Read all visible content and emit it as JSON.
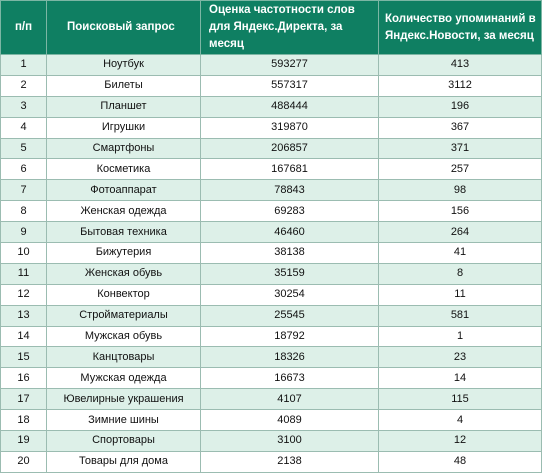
{
  "table": {
    "headers": {
      "num": "п/п",
      "query": "Поисковый запрос",
      "yandex_direct": "Оценка частотности слов для Яндекс.Директа, за месяц",
      "yandex_news": "Количество упоминаний в Яндекс.Новости, за месяц"
    },
    "rows": [
      {
        "num": "1",
        "query": "Ноутбук",
        "direct": "593277",
        "news": "413"
      },
      {
        "num": "2",
        "query": "Билеты",
        "direct": "557317",
        "news": "3112"
      },
      {
        "num": "3",
        "query": "Планшет",
        "direct": "488444",
        "news": "196"
      },
      {
        "num": "4",
        "query": "Игрушки",
        "direct": "319870",
        "news": "367"
      },
      {
        "num": "5",
        "query": "Смартфоны",
        "direct": "206857",
        "news": "371"
      },
      {
        "num": "6",
        "query": "Косметика",
        "direct": "167681",
        "news": "257"
      },
      {
        "num": "7",
        "query": "Фотоаппарат",
        "direct": "78843",
        "news": "98"
      },
      {
        "num": "8",
        "query": "Женская одежда",
        "direct": "69283",
        "news": "156"
      },
      {
        "num": "9",
        "query": "Бытовая техника",
        "direct": "46460",
        "news": "264"
      },
      {
        "num": "10",
        "query": "Бижутерия",
        "direct": "38138",
        "news": "41"
      },
      {
        "num": "11",
        "query": "Женская обувь",
        "direct": "35159",
        "news": "8"
      },
      {
        "num": "12",
        "query": "Конвектор",
        "direct": "30254",
        "news": "11"
      },
      {
        "num": "13",
        "query": "Стройматериалы",
        "direct": "25545",
        "news": "581"
      },
      {
        "num": "14",
        "query": "Мужская обувь",
        "direct": "18792",
        "news": "1"
      },
      {
        "num": "15",
        "query": "Канцтовары",
        "direct": "18326",
        "news": "23"
      },
      {
        "num": "16",
        "query": "Мужская одежда",
        "direct": "16673",
        "news": "14"
      },
      {
        "num": "17",
        "query": "Ювелирные украшения",
        "direct": "4107",
        "news": "115"
      },
      {
        "num": "18",
        "query": "Зимние шины",
        "direct": "4089",
        "news": "4"
      },
      {
        "num": "19",
        "query": "Спортовары",
        "direct": "3100",
        "news": "12"
      },
      {
        "num": "20",
        "query": "Товары для дома",
        "direct": "2138",
        "news": "48"
      }
    ]
  }
}
